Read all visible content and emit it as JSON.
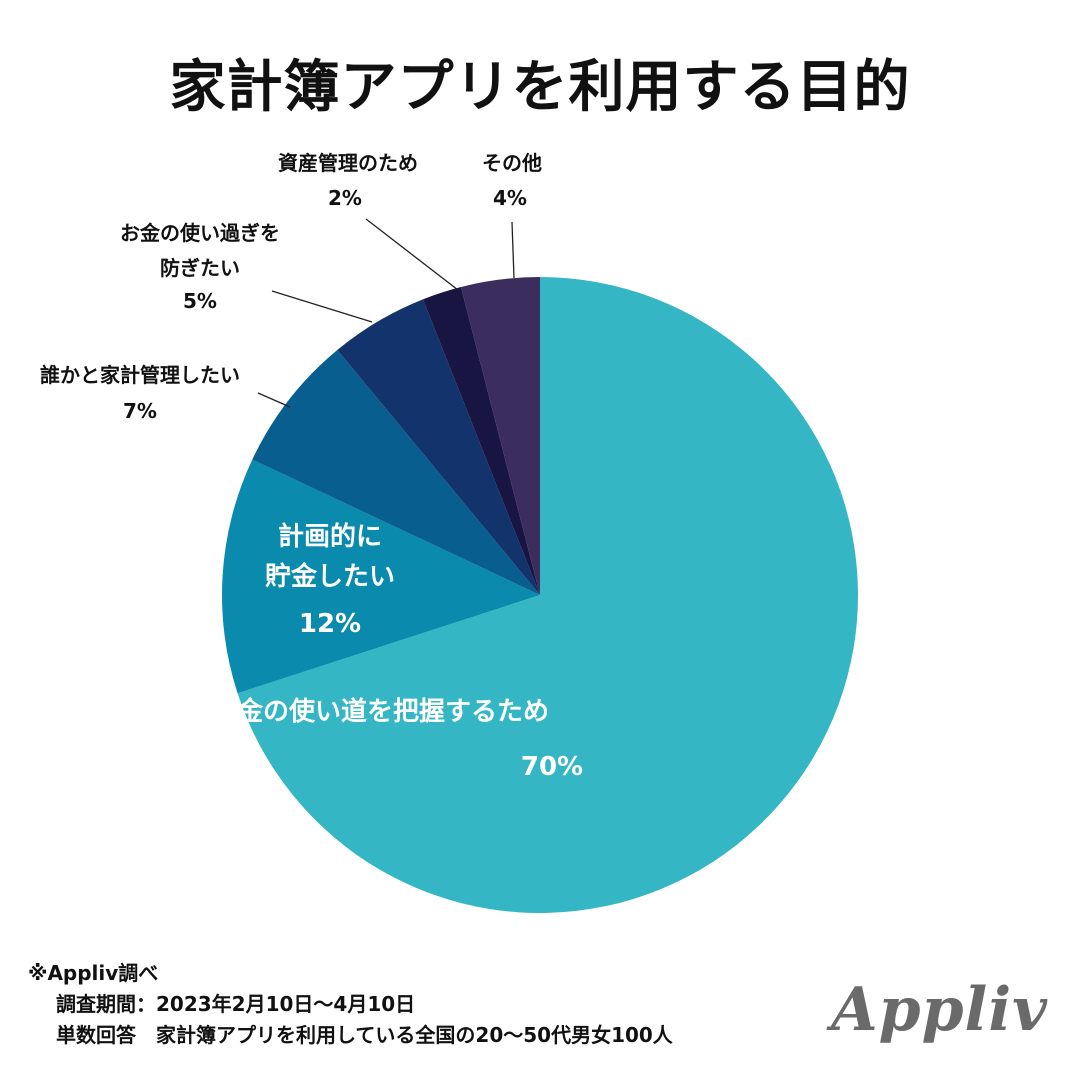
{
  "title": "家計簿アプリを利用する目的",
  "chart_data": {
    "type": "pie",
    "title": "家計簿アプリを利用する目的",
    "slices": [
      {
        "label": "お金の使い道を把握するため",
        "value": 70,
        "value_label": "70%",
        "color": "#34b6c5"
      },
      {
        "label": "計画的に貯金したい",
        "value": 12,
        "value_label": "12%",
        "color": "#0a8aad"
      },
      {
        "label": "誰かと家計管理したい",
        "value": 7,
        "value_label": "7%",
        "color": "#075e8f"
      },
      {
        "label": "お金の使い過ぎを防ぎたい",
        "value": 5,
        "value_label": "5%",
        "color": "#12336b"
      },
      {
        "label": "資産管理のため",
        "value": 2,
        "value_label": "2%",
        "color": "#181542"
      },
      {
        "label": "その他",
        "value": 4,
        "value_label": "4%",
        "color": "#3c2d5f"
      }
    ]
  },
  "footer": {
    "source": "※Appliv調べ",
    "period": "調査期間：2023年2月10日〜4月10日",
    "respondents": "単数回答　家計簿アプリを利用している全国の20〜50代男女100人"
  },
  "logo_text": "Appliv"
}
